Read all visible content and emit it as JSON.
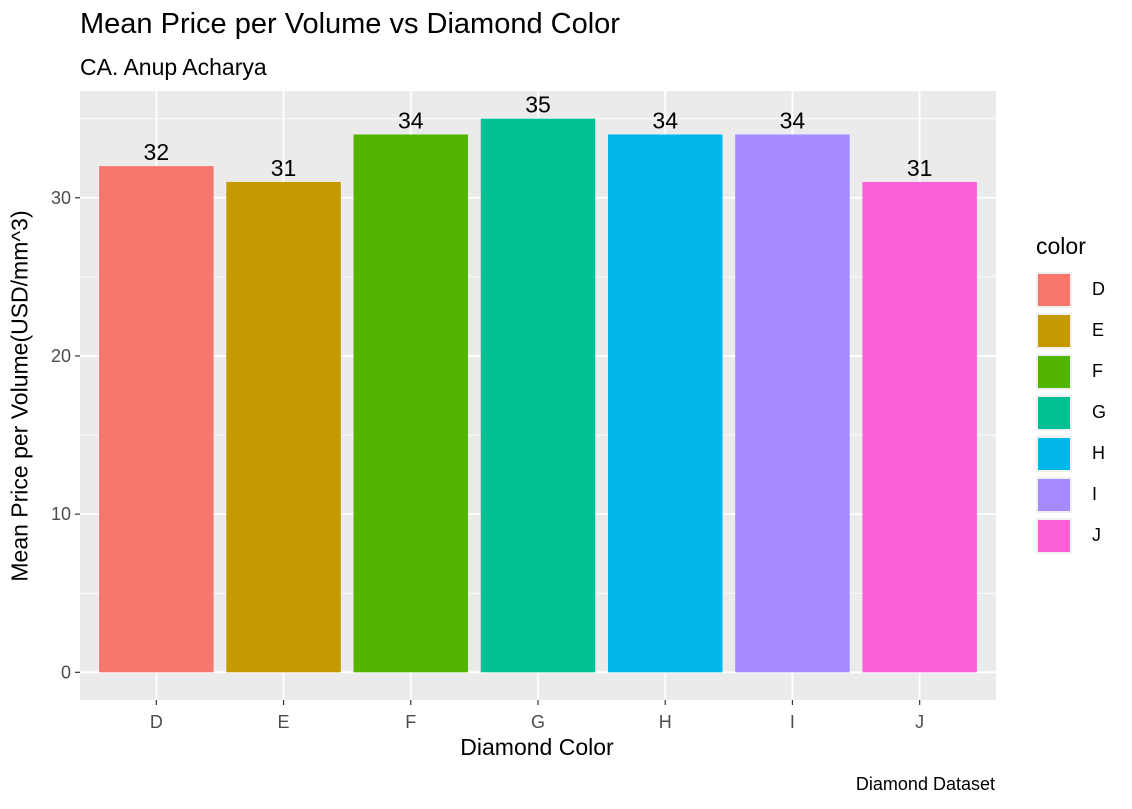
{
  "chart_data": {
    "type": "bar",
    "title": "Mean Price per Volume vs Diamond Color",
    "subtitle": "CA. Anup Acharya",
    "caption": "Diamond Dataset",
    "xlabel": "Diamond Color",
    "ylabel": "Mean Price per Volume(USD/mm^3)",
    "categories": [
      "D",
      "E",
      "F",
      "G",
      "H",
      "I",
      "J"
    ],
    "values": [
      32,
      31,
      34,
      35,
      34,
      34,
      31
    ],
    "data_labels": [
      "32",
      "31",
      "34",
      "35",
      "34",
      "34",
      "31"
    ],
    "colors": [
      "#F8766D",
      "#C49A00",
      "#53B400",
      "#00C094",
      "#00B6EB",
      "#A58AFF",
      "#FB61D7"
    ],
    "ylim": [
      -1.75,
      36.75
    ],
    "yticks": [
      0,
      10,
      20,
      30
    ],
    "ytick_labels": [
      "0",
      "10",
      "20",
      "30"
    ],
    "grid": true,
    "legend": {
      "title": "color",
      "position": "right",
      "entries": [
        "D",
        "E",
        "F",
        "G",
        "H",
        "I",
        "J"
      ]
    }
  }
}
